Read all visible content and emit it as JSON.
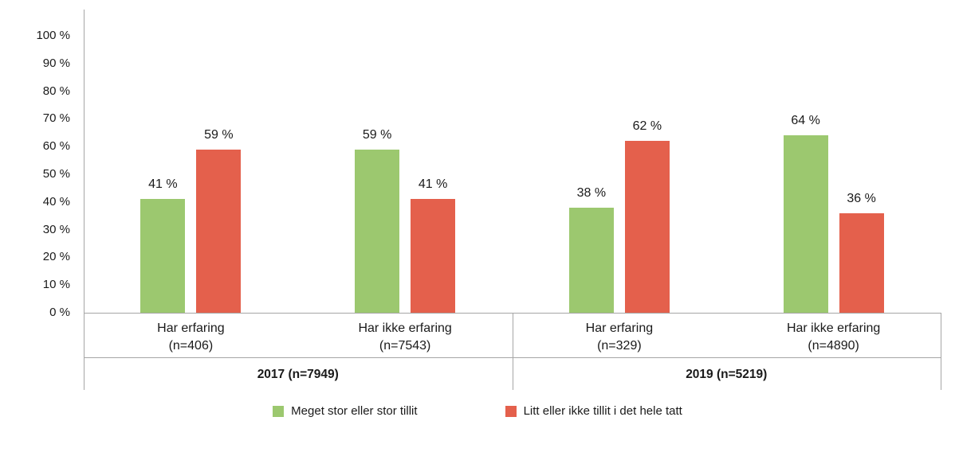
{
  "chart_data": {
    "type": "bar",
    "title": "",
    "grid": false,
    "legend_position": "bottom",
    "colors": {
      "axis_line": "#a6a6a6",
      "text": "#1a1a1a",
      "background": "#ffffff"
    },
    "y_axis": {
      "min": 0,
      "max": 100,
      "step": 10,
      "ticks": [
        "0 %",
        "10 %",
        "20 %",
        "30 %",
        "40 %",
        "50 %",
        "60 %",
        "70 %",
        "80 %",
        "90 %",
        "100 %"
      ]
    },
    "series": [
      {
        "name": "Meget stor eller stor tillit",
        "color": "#9cc86f"
      },
      {
        "name": "Litt eller ikke tillit i det hele tatt",
        "color": "#e4604c"
      }
    ],
    "groups": [
      {
        "label": "2017 (n=7949)",
        "categories": [
          {
            "label_line1": "Har erfaring",
            "label_line2": "(n=406)",
            "values": [
              41,
              59
            ],
            "value_labels": [
              "41 %",
              "59 %"
            ]
          },
          {
            "label_line1": "Har ikke erfaring",
            "label_line2": "(n=7543)",
            "values": [
              59,
              41
            ],
            "value_labels": [
              "59 %",
              "41 %"
            ]
          }
        ]
      },
      {
        "label": "2019 (n=5219)",
        "categories": [
          {
            "label_line1": "Har erfaring",
            "label_line2": "(n=329)",
            "values": [
              38,
              62
            ],
            "value_labels": [
              "38 %",
              "62 %"
            ]
          },
          {
            "label_line1": "Har ikke erfaring",
            "label_line2": "(n=4890)",
            "values": [
              64,
              36
            ],
            "value_labels": [
              "64 %",
              "36 %"
            ]
          }
        ]
      }
    ]
  }
}
